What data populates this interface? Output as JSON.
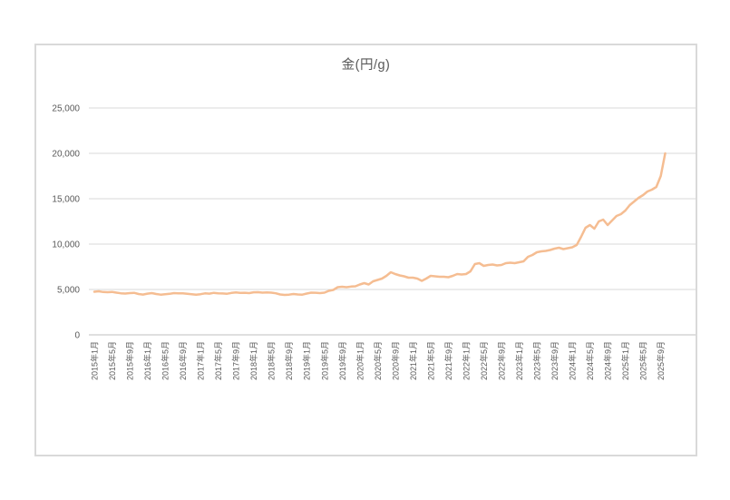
{
  "page": {
    "background": "#FFFFFF"
  },
  "chart_data": {
    "type": "line",
    "title": "金(円/g)",
    "x_start": "2015年1月",
    "x_interval": "monthly",
    "x_tick_every": 4,
    "x_tick_labels": [
      "2015年1月",
      "2015年5月",
      "2015年9月",
      "2016年1月",
      "2016年5月",
      "2016年9月",
      "2017年1月",
      "2017年5月",
      "2017年9月",
      "2018年1月",
      "2018年5月",
      "2018年9月",
      "2019年1月",
      "2019年5月",
      "2019年9月",
      "2020年1月",
      "2020年5月",
      "2020年9月",
      "2021年1月",
      "2021年5月",
      "2021年9月",
      "2022年1月",
      "2022年5月",
      "2022年9月",
      "2023年1月",
      "2023年5月",
      "2023年9月",
      "2024年1月",
      "2024年5月",
      "2024年9月",
      "2025年1月",
      "2025年5月",
      "2025年9月"
    ],
    "y_tick_labels": [
      "0",
      "5,000",
      "10,000",
      "15,000",
      "20,000",
      "25,000"
    ],
    "ylim": [
      0,
      25000
    ],
    "y_tick_step": 5000,
    "grid": "horizontal",
    "legend": "none",
    "line_color": "#F5BD92",
    "gridline_color": "#D9D9D9",
    "axis_color": "#BFBFBF",
    "text_color": "#595959",
    "border_color": "#D9D9D9",
    "values": [
      4750,
      4800,
      4720,
      4700,
      4730,
      4650,
      4580,
      4550,
      4600,
      4630,
      4500,
      4440,
      4540,
      4600,
      4500,
      4430,
      4470,
      4520,
      4600,
      4580,
      4570,
      4520,
      4480,
      4420,
      4480,
      4570,
      4540,
      4630,
      4580,
      4560,
      4530,
      4620,
      4680,
      4630,
      4640,
      4600,
      4690,
      4700,
      4650,
      4680,
      4650,
      4580,
      4450,
      4400,
      4430,
      4500,
      4450,
      4430,
      4550,
      4650,
      4640,
      4600,
      4650,
      4850,
      4950,
      5250,
      5300,
      5250,
      5320,
      5350,
      5550,
      5700,
      5550,
      5900,
      6050,
      6200,
      6500,
      6900,
      6700,
      6550,
      6450,
      6300,
      6300,
      6200,
      5950,
      6200,
      6500,
      6450,
      6400,
      6400,
      6350,
      6500,
      6700,
      6650,
      6700,
      7000,
      7800,
      7900,
      7600,
      7700,
      7750,
      7650,
      7700,
      7900,
      7950,
      7900,
      8000,
      8100,
      8600,
      8800,
      9100,
      9200,
      9250,
      9350,
      9500,
      9600,
      9450,
      9550,
      9650,
      9900,
      10800,
      11800,
      12100,
      11700,
      12500,
      12700,
      12100,
      12600,
      13100,
      13300,
      13700,
      14300,
      14700,
      15100,
      15400,
      15800,
      16000,
      16300,
      17500,
      20000
    ]
  }
}
